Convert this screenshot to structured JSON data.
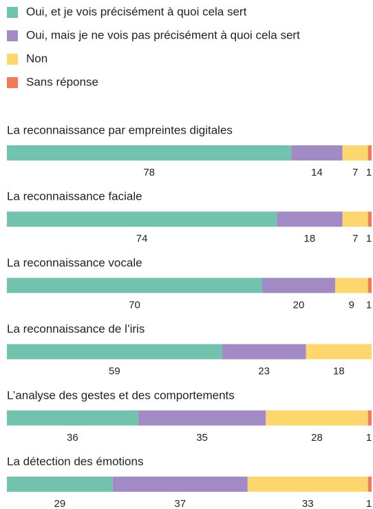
{
  "chart_data": {
    "type": "bar",
    "orientation": "horizontal",
    "stacked": true,
    "categories": [
      "La reconnaissance par empreintes digitales",
      "La reconnaissance faciale",
      "La reconnaissance vocale",
      "La reconnaissance de l’iris",
      "L’analyse des gestes et des comportements",
      "La détection des émotions"
    ],
    "series": [
      {
        "name": "Oui, et je vois précisément à quoi cela sert",
        "color": "#72c3ad",
        "values": [
          78,
          74,
          70,
          59,
          36,
          29
        ]
      },
      {
        "name": "Oui, mais je ne vois pas précisément à quoi cela sert",
        "color": "#a28ac4",
        "values": [
          14,
          18,
          20,
          23,
          35,
          37
        ]
      },
      {
        "name": "Non",
        "color": "#fdd76e",
        "values": [
          7,
          7,
          9,
          18,
          28,
          33
        ]
      },
      {
        "name": "Sans réponse",
        "color": "#f07c5b",
        "values": [
          1,
          1,
          1,
          null,
          1,
          1
        ]
      }
    ],
    "legend": "top-left"
  }
}
